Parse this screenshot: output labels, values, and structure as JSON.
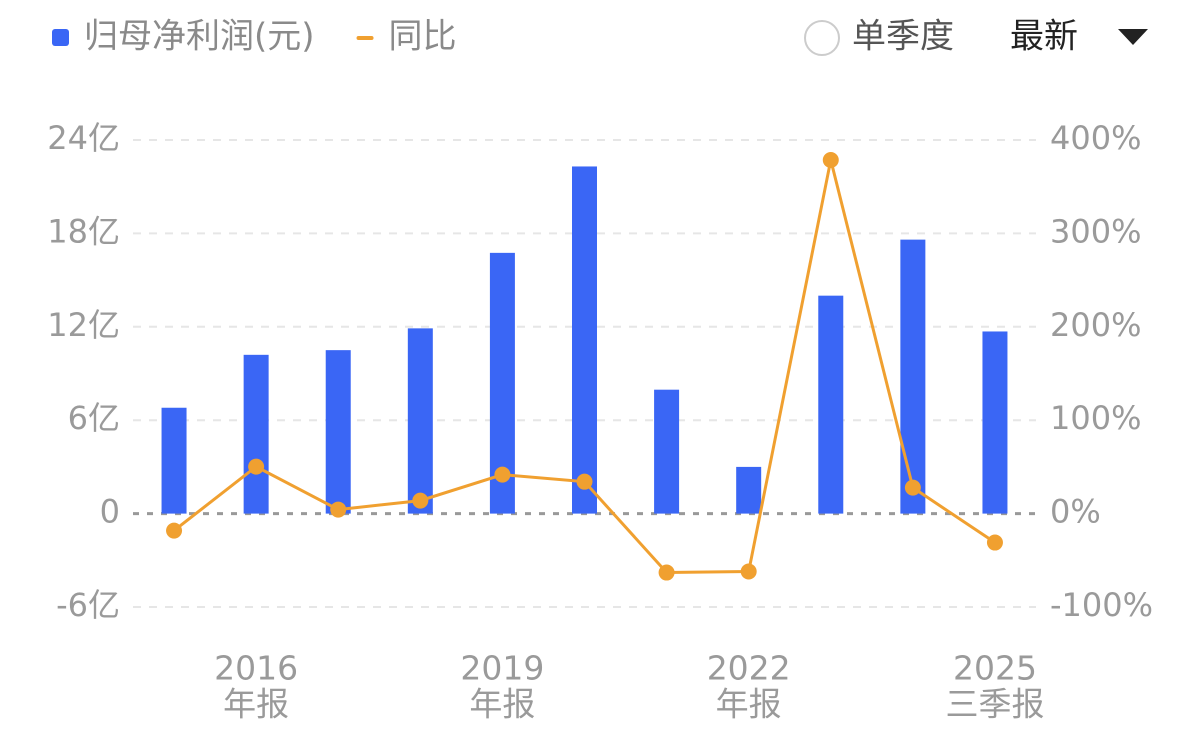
{
  "chart_data": {
    "type": "bar-line",
    "categories": [
      null,
      [
        "2016",
        "年报"
      ],
      null,
      null,
      [
        "2019",
        "年报"
      ],
      null,
      null,
      [
        "2022",
        "年报"
      ],
      null,
      null,
      [
        "2025",
        "三季报"
      ]
    ],
    "series": [
      {
        "name": "归母净利润(元)",
        "type": "bar",
        "color": "#3a66f5",
        "axis": "y",
        "values": [
          6.8,
          10.2,
          10.5,
          11.9,
          16.75,
          22.3,
          7.96,
          3.0,
          14.0,
          17.6,
          11.7
        ]
      },
      {
        "name": "同比",
        "type": "line",
        "color": "#f0a030",
        "axis": "y2",
        "values": [
          -18.2,
          50.3,
          4.3,
          13.9,
          41.7,
          34.2,
          -63.1,
          -62.0,
          378.6,
          27.8,
          -31.0
        ]
      }
    ],
    "ylim": [
      -6,
      24
    ],
    "yticks": [
      {
        "value": -6,
        "label": "-6亿"
      },
      0,
      {
        "value": 6,
        "label": "6亿"
      },
      {
        "value": 12,
        "label": "12亿"
      },
      {
        "value": 18,
        "label": "18亿"
      },
      {
        "value": 24,
        "label": "24亿"
      }
    ],
    "y2lim": [
      -100,
      400
    ],
    "y2ticks": [
      {
        "value": -100,
        "label": "-100%"
      },
      {
        "value": 0,
        "label": "0%"
      },
      {
        "value": 100,
        "label": "100%"
      },
      {
        "value": 200,
        "label": "200%"
      },
      {
        "value": 300,
        "label": "300%"
      },
      {
        "value": 400,
        "label": "400%"
      }
    ],
    "grid": true
  },
  "controls": {
    "toggle": "单季度",
    "period": "最新"
  }
}
